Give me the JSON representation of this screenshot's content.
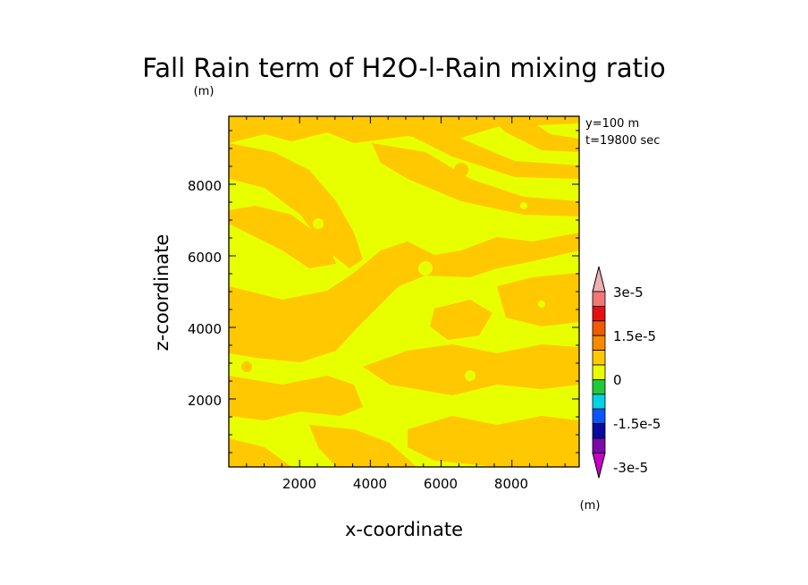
{
  "chart_data": {
    "type": "heatmap",
    "title": "Fall Rain term of H2O-l-Rain mixing ratio",
    "y_unit": "(m)",
    "xlabel": "x-coordinate",
    "ylabel": "z-coordinate",
    "xlim": [
      0,
      9900
    ],
    "ylim": [
      100,
      9900
    ],
    "x_ticks": [
      "2000",
      "4000",
      "6000",
      "8000"
    ],
    "y_ticks": [
      "2000",
      "4000",
      "6000",
      "8000"
    ],
    "annotations": [
      "y=100  m",
      "t=19800 sec"
    ],
    "field_levels_present": [
      "0 to 5e-6 (yellow)",
      "-5e-6 to 0 (orange-yellow)"
    ],
    "colorbar": {
      "unit": "(m)",
      "labels": [
        "3e-5",
        "1.5e-5",
        "0",
        "-1.5e-5",
        "-3e-5"
      ],
      "colors_top_to_bottom": [
        "#f0b0b0",
        "#f07878",
        "#e61010",
        "#f05a00",
        "#f78b00",
        "#ffc800",
        "#e8ff00",
        "#21c83c",
        "#00d2e6",
        "#0a55ff",
        "#0a0aa0",
        "#7a0aaa",
        "#c800c8"
      ],
      "extend": "both"
    }
  }
}
